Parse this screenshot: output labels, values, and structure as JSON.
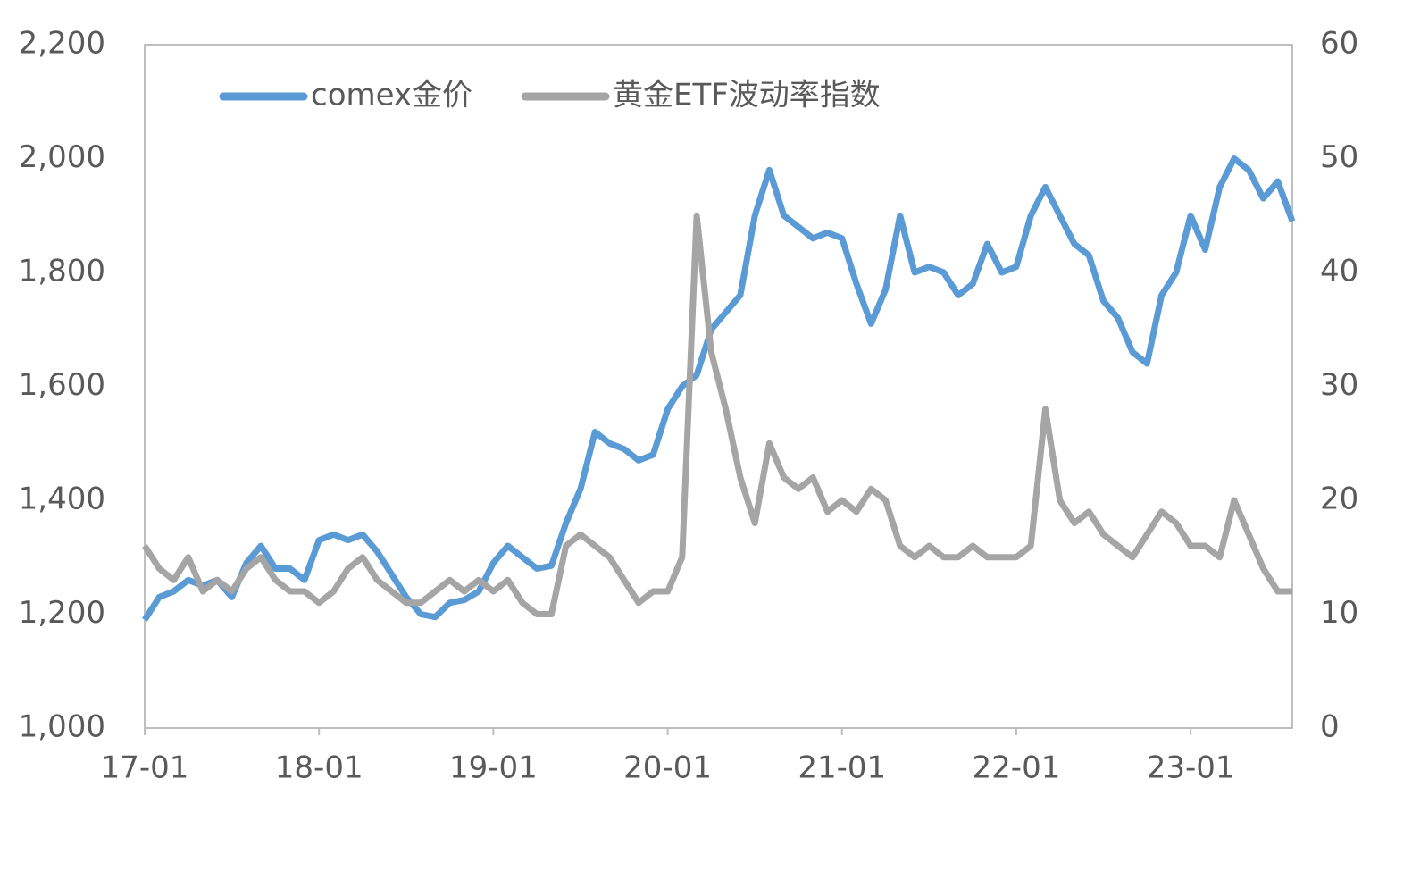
{
  "chart_data": {
    "type": "line",
    "categories": [
      "17-01",
      null,
      null,
      null,
      null,
      null,
      null,
      null,
      null,
      null,
      null,
      null,
      "18-01",
      null,
      null,
      null,
      null,
      null,
      null,
      null,
      null,
      null,
      null,
      null,
      "19-01",
      null,
      null,
      null,
      null,
      null,
      null,
      null,
      null,
      null,
      null,
      null,
      "20-01",
      null,
      null,
      null,
      null,
      null,
      null,
      null,
      null,
      null,
      null,
      null,
      "21-01",
      null,
      null,
      null,
      null,
      null,
      null,
      null,
      null,
      null,
      null,
      null,
      "22-01",
      null,
      null,
      null,
      null,
      null,
      null,
      null,
      null,
      null,
      null,
      null,
      "23-01",
      null,
      null,
      null,
      null,
      null,
      null,
      null
    ],
    "series": [
      {
        "name": "comex金价",
        "color": "#5b9bd5",
        "values": [
          1190,
          1230,
          1240,
          1260,
          1250,
          1260,
          1230,
          1290,
          1320,
          1280,
          1280,
          1260,
          1330,
          1340,
          1330,
          1340,
          1310,
          1270,
          1230,
          1200,
          1195,
          1220,
          1225,
          1240,
          1290,
          1320,
          1300,
          1280,
          1285,
          1360,
          1420,
          1520,
          1500,
          1490,
          1470,
          1480,
          1560,
          1600,
          1620,
          1700,
          1730,
          1760,
          1900,
          1980,
          1900,
          1880,
          1860,
          1870,
          1860,
          1780,
          1710,
          1770,
          1900,
          1800,
          1810,
          1800,
          1760,
          1780,
          1850,
          1800,
          1810,
          1900,
          1950,
          1900,
          1850,
          1830,
          1750,
          1720,
          1660,
          1640,
          1760,
          1800,
          1900,
          1840,
          1950,
          2000,
          1980,
          1930,
          1960,
          1890
        ]
      },
      {
        "name": "黄金ETF波动率指数",
        "color": "#a5a5a5",
        "axis": "y2",
        "values": [
          16,
          14,
          13,
          15,
          12,
          13,
          12,
          14,
          15,
          13,
          12,
          12,
          11,
          12,
          14,
          15,
          13,
          12,
          11,
          11,
          12,
          13,
          12,
          13,
          12,
          13,
          11,
          10,
          10,
          16,
          17,
          16,
          15,
          13,
          11,
          12,
          12,
          15,
          45,
          33,
          28,
          22,
          18,
          25,
          22,
          21,
          22,
          19,
          20,
          19,
          21,
          20,
          16,
          15,
          16,
          15,
          15,
          16,
          15,
          15,
          15,
          16,
          28,
          20,
          18,
          19,
          17,
          16,
          15,
          17,
          19,
          18,
          16,
          16,
          15,
          20,
          17,
          14,
          12,
          12
        ]
      }
    ],
    "ylim": [
      1000,
      2200
    ],
    "yticks": [
      {
        "value": 1000,
        "label": "1,000"
      },
      {
        "value": 1200,
        "label": "1,200"
      },
      {
        "value": 1400,
        "label": "1,400"
      },
      {
        "value": 1600,
        "label": "1,600"
      },
      {
        "value": 1800,
        "label": "1,800"
      },
      {
        "value": 2000,
        "label": "2,000"
      },
      {
        "value": 2200,
        "label": "2,200"
      }
    ],
    "y2lim": [
      0,
      60
    ],
    "y2ticks": [
      0,
      10,
      20,
      30,
      40,
      50,
      60
    ],
    "grid": false,
    "legend": "top-left"
  }
}
